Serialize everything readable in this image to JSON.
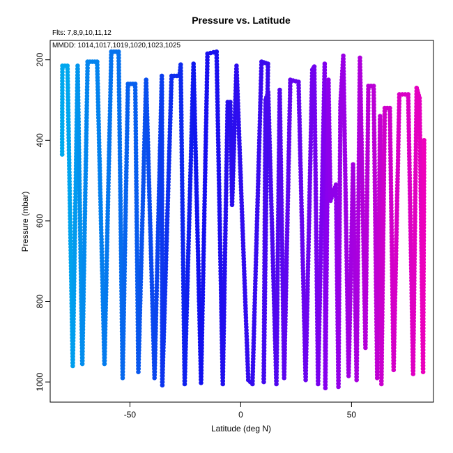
{
  "chart_data": {
    "type": "scatter",
    "title": "Pressure vs. Latitude",
    "annotations": [
      "Flts: 7,8,9,10,11,12",
      "MMDD: 1014,1017,1019,1020,1023,1025"
    ],
    "xlabel": "Latitude (deg N)",
    "ylabel": "Pressure (mbar)",
    "xlim": [
      -86,
      87
    ],
    "ylim": [
      1050,
      152
    ],
    "y_reversed": true,
    "grid": false,
    "x_ticks": [
      -50,
      0,
      50
    ],
    "y_ticks": [
      200,
      400,
      600,
      800,
      1000
    ],
    "color_gradient": [
      "#00aaee",
      "#1111ee",
      "#8800ee",
      "#ee00bb"
    ],
    "profile_vertices": [
      [
        -80.6,
        435
      ],
      [
        -80.5,
        215
      ],
      [
        -78.2,
        215
      ],
      [
        -75.8,
        960
      ],
      [
        -73.6,
        215
      ],
      [
        -71.5,
        955
      ],
      [
        -69.1,
        205
      ],
      [
        -64.8,
        205
      ],
      [
        -61.5,
        955
      ],
      [
        -58.4,
        180
      ],
      [
        -55.1,
        180
      ],
      [
        -53.3,
        990
      ],
      [
        -50.9,
        260
      ],
      [
        -47.6,
        260
      ],
      [
        -46.2,
        975
      ],
      [
        -42.7,
        250
      ],
      [
        -38.9,
        990
      ],
      [
        -35.6,
        240
      ],
      [
        -35.4,
        1008
      ],
      [
        -31.2,
        240
      ],
      [
        -27.6,
        240
      ],
      [
        -27.1,
        212
      ],
      [
        -25.3,
        1005
      ],
      [
        -21.3,
        210
      ],
      [
        -17.9,
        1002
      ],
      [
        -15.0,
        185
      ],
      [
        -10.9,
        180
      ],
      [
        -8.1,
        1005
      ],
      [
        -5.9,
        305
      ],
      [
        -4.7,
        305
      ],
      [
        -3.9,
        560
      ],
      [
        -1.9,
        215
      ],
      [
        3.4,
        995
      ],
      [
        5.3,
        1005
      ],
      [
        9.4,
        205
      ],
      [
        12.3,
        210
      ],
      [
        10.4,
        1000
      ],
      [
        11.2,
        300
      ],
      [
        12.4,
        280
      ],
      [
        16.1,
        1005
      ],
      [
        17.6,
        275
      ],
      [
        19.6,
        990
      ],
      [
        22.4,
        250
      ],
      [
        26.1,
        255
      ],
      [
        29.3,
        995
      ],
      [
        32.3,
        225
      ],
      [
        33.2,
        217
      ],
      [
        34.9,
        1005
      ],
      [
        37.9,
        210
      ],
      [
        38.2,
        1015
      ],
      [
        39.6,
        250
      ],
      [
        40.5,
        550
      ],
      [
        43.0,
        510
      ],
      [
        44.1,
        1012
      ],
      [
        45.0,
        310
      ],
      [
        46.3,
        190
      ],
      [
        48.7,
        985
      ],
      [
        50.7,
        460
      ],
      [
        52.3,
        995
      ],
      [
        53.8,
        195
      ],
      [
        56.3,
        915
      ],
      [
        57.6,
        265
      ],
      [
        60.0,
        265
      ],
      [
        61.6,
        990
      ],
      [
        62.9,
        340
      ],
      [
        63.5,
        1005
      ],
      [
        65.0,
        320
      ],
      [
        67.3,
        320
      ],
      [
        69.0,
        970
      ],
      [
        71.6,
        286
      ],
      [
        75.6,
        286
      ],
      [
        77.8,
        980
      ],
      [
        79.4,
        270
      ],
      [
        80.7,
        295
      ],
      [
        82.3,
        975
      ],
      [
        82.8,
        400
      ]
    ]
  }
}
